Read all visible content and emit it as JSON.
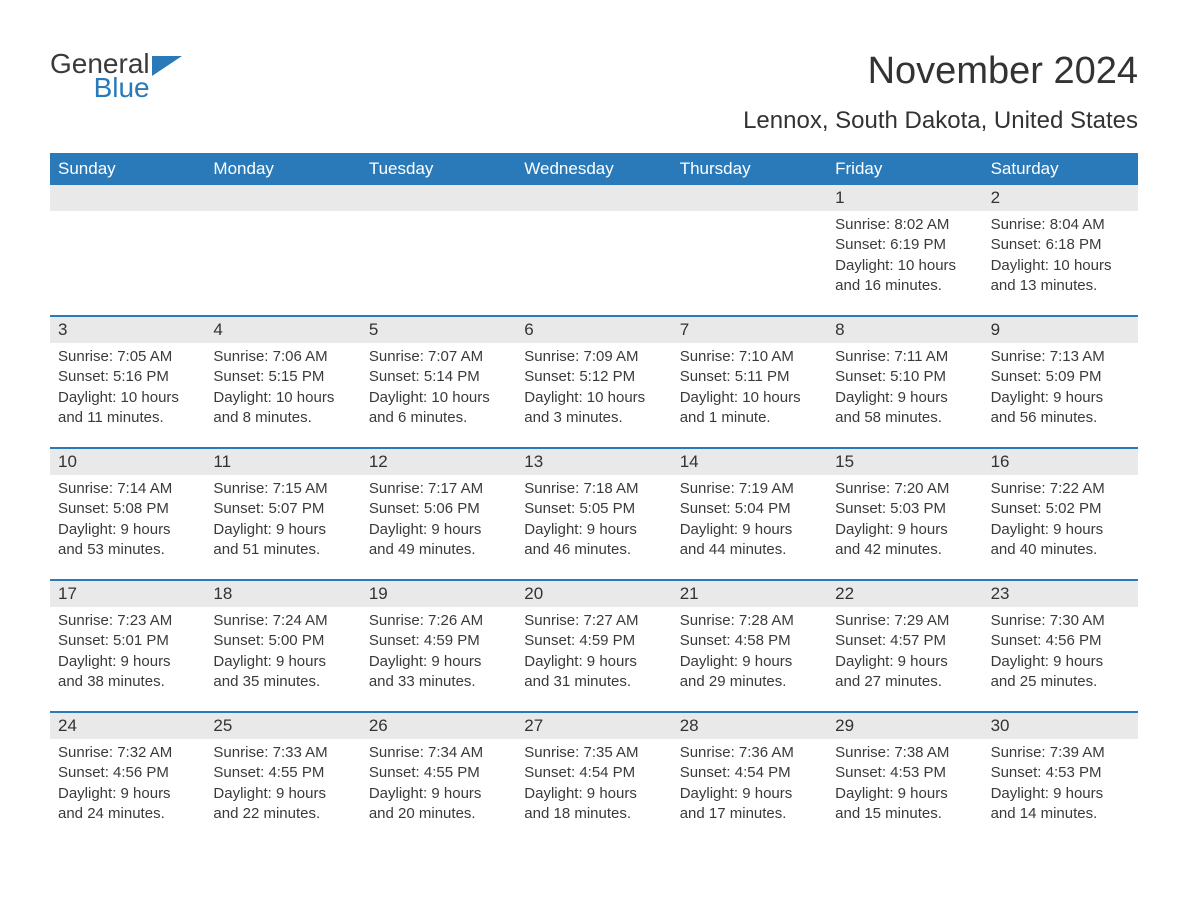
{
  "logo": {
    "word1": "General",
    "word2": "Blue"
  },
  "colors": {
    "brand_blue": "#2a7ab9",
    "header_text": "#ffffff",
    "daynum_bg": "#e9e9e9",
    "text": "#3a3a3a",
    "title_text": "#333333",
    "background": "#ffffff"
  },
  "typography": {
    "month_title_fontsize": 38,
    "location_fontsize": 24,
    "weekday_fontsize": 17,
    "body_fontsize": 15
  },
  "title": "November 2024",
  "location": "Lennox, South Dakota, United States",
  "weekdays": [
    "Sunday",
    "Monday",
    "Tuesday",
    "Wednesday",
    "Thursday",
    "Friday",
    "Saturday"
  ],
  "weeks": [
    [
      null,
      null,
      null,
      null,
      null,
      {
        "n": "1",
        "sunrise": "Sunrise: 8:02 AM",
        "sunset": "Sunset: 6:19 PM",
        "daylight": "Daylight: 10 hours and 16 minutes."
      },
      {
        "n": "2",
        "sunrise": "Sunrise: 8:04 AM",
        "sunset": "Sunset: 6:18 PM",
        "daylight": "Daylight: 10 hours and 13 minutes."
      }
    ],
    [
      {
        "n": "3",
        "sunrise": "Sunrise: 7:05 AM",
        "sunset": "Sunset: 5:16 PM",
        "daylight": "Daylight: 10 hours and 11 minutes."
      },
      {
        "n": "4",
        "sunrise": "Sunrise: 7:06 AM",
        "sunset": "Sunset: 5:15 PM",
        "daylight": "Daylight: 10 hours and 8 minutes."
      },
      {
        "n": "5",
        "sunrise": "Sunrise: 7:07 AM",
        "sunset": "Sunset: 5:14 PM",
        "daylight": "Daylight: 10 hours and 6 minutes."
      },
      {
        "n": "6",
        "sunrise": "Sunrise: 7:09 AM",
        "sunset": "Sunset: 5:12 PM",
        "daylight": "Daylight: 10 hours and 3 minutes."
      },
      {
        "n": "7",
        "sunrise": "Sunrise: 7:10 AM",
        "sunset": "Sunset: 5:11 PM",
        "daylight": "Daylight: 10 hours and 1 minute."
      },
      {
        "n": "8",
        "sunrise": "Sunrise: 7:11 AM",
        "sunset": "Sunset: 5:10 PM",
        "daylight": "Daylight: 9 hours and 58 minutes."
      },
      {
        "n": "9",
        "sunrise": "Sunrise: 7:13 AM",
        "sunset": "Sunset: 5:09 PM",
        "daylight": "Daylight: 9 hours and 56 minutes."
      }
    ],
    [
      {
        "n": "10",
        "sunrise": "Sunrise: 7:14 AM",
        "sunset": "Sunset: 5:08 PM",
        "daylight": "Daylight: 9 hours and 53 minutes."
      },
      {
        "n": "11",
        "sunrise": "Sunrise: 7:15 AM",
        "sunset": "Sunset: 5:07 PM",
        "daylight": "Daylight: 9 hours and 51 minutes."
      },
      {
        "n": "12",
        "sunrise": "Sunrise: 7:17 AM",
        "sunset": "Sunset: 5:06 PM",
        "daylight": "Daylight: 9 hours and 49 minutes."
      },
      {
        "n": "13",
        "sunrise": "Sunrise: 7:18 AM",
        "sunset": "Sunset: 5:05 PM",
        "daylight": "Daylight: 9 hours and 46 minutes."
      },
      {
        "n": "14",
        "sunrise": "Sunrise: 7:19 AM",
        "sunset": "Sunset: 5:04 PM",
        "daylight": "Daylight: 9 hours and 44 minutes."
      },
      {
        "n": "15",
        "sunrise": "Sunrise: 7:20 AM",
        "sunset": "Sunset: 5:03 PM",
        "daylight": "Daylight: 9 hours and 42 minutes."
      },
      {
        "n": "16",
        "sunrise": "Sunrise: 7:22 AM",
        "sunset": "Sunset: 5:02 PM",
        "daylight": "Daylight: 9 hours and 40 minutes."
      }
    ],
    [
      {
        "n": "17",
        "sunrise": "Sunrise: 7:23 AM",
        "sunset": "Sunset: 5:01 PM",
        "daylight": "Daylight: 9 hours and 38 minutes."
      },
      {
        "n": "18",
        "sunrise": "Sunrise: 7:24 AM",
        "sunset": "Sunset: 5:00 PM",
        "daylight": "Daylight: 9 hours and 35 minutes."
      },
      {
        "n": "19",
        "sunrise": "Sunrise: 7:26 AM",
        "sunset": "Sunset: 4:59 PM",
        "daylight": "Daylight: 9 hours and 33 minutes."
      },
      {
        "n": "20",
        "sunrise": "Sunrise: 7:27 AM",
        "sunset": "Sunset: 4:59 PM",
        "daylight": "Daylight: 9 hours and 31 minutes."
      },
      {
        "n": "21",
        "sunrise": "Sunrise: 7:28 AM",
        "sunset": "Sunset: 4:58 PM",
        "daylight": "Daylight: 9 hours and 29 minutes."
      },
      {
        "n": "22",
        "sunrise": "Sunrise: 7:29 AM",
        "sunset": "Sunset: 4:57 PM",
        "daylight": "Daylight: 9 hours and 27 minutes."
      },
      {
        "n": "23",
        "sunrise": "Sunrise: 7:30 AM",
        "sunset": "Sunset: 4:56 PM",
        "daylight": "Daylight: 9 hours and 25 minutes."
      }
    ],
    [
      {
        "n": "24",
        "sunrise": "Sunrise: 7:32 AM",
        "sunset": "Sunset: 4:56 PM",
        "daylight": "Daylight: 9 hours and 24 minutes."
      },
      {
        "n": "25",
        "sunrise": "Sunrise: 7:33 AM",
        "sunset": "Sunset: 4:55 PM",
        "daylight": "Daylight: 9 hours and 22 minutes."
      },
      {
        "n": "26",
        "sunrise": "Sunrise: 7:34 AM",
        "sunset": "Sunset: 4:55 PM",
        "daylight": "Daylight: 9 hours and 20 minutes."
      },
      {
        "n": "27",
        "sunrise": "Sunrise: 7:35 AM",
        "sunset": "Sunset: 4:54 PM",
        "daylight": "Daylight: 9 hours and 18 minutes."
      },
      {
        "n": "28",
        "sunrise": "Sunrise: 7:36 AM",
        "sunset": "Sunset: 4:54 PM",
        "daylight": "Daylight: 9 hours and 17 minutes."
      },
      {
        "n": "29",
        "sunrise": "Sunrise: 7:38 AM",
        "sunset": "Sunset: 4:53 PM",
        "daylight": "Daylight: 9 hours and 15 minutes."
      },
      {
        "n": "30",
        "sunrise": "Sunrise: 7:39 AM",
        "sunset": "Sunset: 4:53 PM",
        "daylight": "Daylight: 9 hours and 14 minutes."
      }
    ]
  ]
}
